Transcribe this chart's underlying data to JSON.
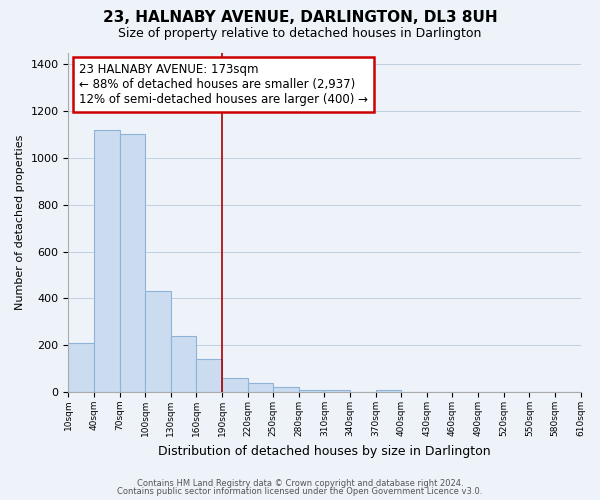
{
  "title": "23, HALNABY AVENUE, DARLINGTON, DL3 8UH",
  "subtitle": "Size of property relative to detached houses in Darlington",
  "xlabel": "Distribution of detached houses by size in Darlington",
  "ylabel": "Number of detached properties",
  "bar_values": [
    210,
    1120,
    1100,
    430,
    240,
    140,
    60,
    40,
    20,
    10,
    10,
    0,
    10,
    0,
    0,
    0,
    0,
    0,
    0,
    0
  ],
  "bar_labels": [
    "10sqm",
    "40sqm",
    "70sqm",
    "100sqm",
    "130sqm",
    "160sqm",
    "190sqm",
    "220sqm",
    "250sqm",
    "280sqm",
    "310sqm",
    "340sqm",
    "370sqm",
    "400sqm",
    "430sqm",
    "460sqm",
    "490sqm",
    "520sqm",
    "550sqm",
    "580sqm",
    "610sqm"
  ],
  "bar_color": "#ccdcf0",
  "bar_edge_color": "#8fb3d8",
  "vline_color": "#aa0000",
  "annotation_text": "23 HALNABY AVENUE: 173sqm\n← 88% of detached houses are smaller (2,937)\n12% of semi-detached houses are larger (400) →",
  "annotation_box_color": "#ffffff",
  "annotation_box_edge": "#cc0000",
  "ylim": [
    0,
    1450
  ],
  "yticks": [
    0,
    200,
    400,
    600,
    800,
    1000,
    1200,
    1400
  ],
  "footer1": "Contains HM Land Registry data © Crown copyright and database right 2024.",
  "footer2": "Contains public sector information licensed under the Open Government Licence v3.0.",
  "bg_color": "#eef3fa",
  "plot_bg_color": "#eef3fa",
  "grid_color": "#c0cfe0"
}
